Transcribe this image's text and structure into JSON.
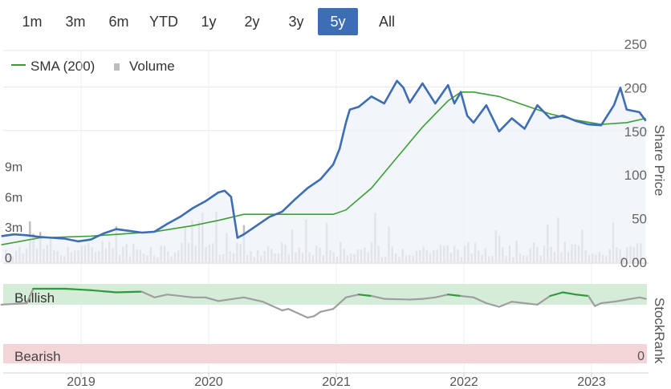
{
  "range_selector": {
    "options": [
      "1m",
      "3m",
      "6m",
      "YTD",
      "1y",
      "2y",
      "3y",
      "5y",
      "All"
    ],
    "selected": "5y"
  },
  "legend": {
    "sma_label": "SMA (200)",
    "volume_label": "Volume"
  },
  "colors": {
    "price_line": "#3d6db5",
    "price_fill": "#eef1f8",
    "sma_line": "#3aa035",
    "volume_bar": "#bdbdbd",
    "bullish_band": "#d5ecd8",
    "bearish_band": "#f4d5d7",
    "stockrank_bull": "#2e9a3a",
    "stockrank_neutral": "#9e9e9e",
    "active_button": "#3d6db5"
  },
  "chart_data": [
    {
      "type": "line",
      "ylabel": "Share Price",
      "ylim": [
        0,
        250
      ],
      "y_ticks": [
        "0.00",
        "50",
        "100",
        "150",
        "200",
        "250"
      ],
      "volume_ticks": [
        "0",
        "3m",
        "6m",
        "9m"
      ],
      "volume_ylim": [
        0,
        12
      ],
      "x_ticks": [
        "2019",
        "2020",
        "2021",
        "2022",
        "2023"
      ],
      "series": [
        {
          "name": "Share Price",
          "x": [
            2018.3,
            2018.4,
            2018.5,
            2018.6,
            2018.7,
            2018.8,
            2018.9,
            2019.0,
            2019.1,
            2019.2,
            2019.3,
            2019.4,
            2019.5,
            2019.6,
            2019.7,
            2019.8,
            2019.9,
            2020.0,
            2020.05,
            2020.1,
            2020.15,
            2020.2,
            2020.3,
            2020.4,
            2020.5,
            2020.6,
            2020.7,
            2020.8,
            2020.9,
            2020.95,
            2021.0,
            2021.03,
            2021.1,
            2021.2,
            2021.3,
            2021.4,
            2021.45,
            2021.5,
            2021.6,
            2021.7,
            2021.8,
            2021.85,
            2021.9,
            2021.95,
            2022.0,
            2022.1,
            2022.2,
            2022.3,
            2022.4,
            2022.5,
            2022.6,
            2022.7,
            2022.8,
            2022.9,
            2023.0,
            2023.1,
            2023.15,
            2023.2,
            2023.3,
            2023.35
          ],
          "values": [
            30,
            32,
            31,
            29,
            28,
            27,
            24,
            26,
            33,
            38,
            36,
            34,
            35,
            44,
            52,
            62,
            70,
            80,
            82,
            75,
            28,
            32,
            42,
            52,
            58,
            72,
            85,
            95,
            112,
            130,
            160,
            175,
            178,
            190,
            182,
            208,
            200,
            183,
            205,
            182,
            203,
            182,
            195,
            168,
            160,
            180,
            150,
            165,
            153,
            180,
            165,
            168,
            162,
            158,
            157,
            180,
            200,
            175,
            172,
            162
          ]
        },
        {
          "name": "SMA (200)",
          "x": [
            2018.3,
            2018.6,
            2019.0,
            2019.5,
            2019.8,
            2020.0,
            2020.2,
            2020.5,
            2020.7,
            2020.9,
            2021.0,
            2021.2,
            2021.4,
            2021.6,
            2021.8,
            2021.9,
            2022.0,
            2022.2,
            2022.4,
            2022.6,
            2022.8,
            2023.0,
            2023.2,
            2023.35
          ],
          "values": [
            20,
            28,
            30,
            35,
            42,
            48,
            55,
            55,
            55,
            55,
            60,
            85,
            120,
            155,
            185,
            195,
            195,
            190,
            180,
            170,
            163,
            158,
            160,
            165
          ]
        }
      ]
    },
    {
      "type": "line",
      "ylabel": "StockRank",
      "bands": [
        "Bullish",
        "Bearish"
      ],
      "y_ticks": [
        "0"
      ],
      "ylim": [
        0,
        100
      ],
      "x": [
        2018.3,
        2018.5,
        2018.55,
        2018.8,
        2019.0,
        2019.2,
        2019.4,
        2019.5,
        2019.6,
        2019.8,
        2019.9,
        2020.0,
        2020.2,
        2020.35,
        2020.5,
        2020.55,
        2020.7,
        2020.75,
        2020.8,
        2020.9,
        2021.0,
        2021.1,
        2021.2,
        2021.3,
        2021.5,
        2021.6,
        2021.7,
        2021.8,
        2021.9,
        2022.0,
        2022.1,
        2022.2,
        2022.3,
        2022.4,
        2022.5,
        2022.6,
        2022.7,
        2022.8,
        2022.9,
        2022.95,
        2023.0,
        2023.1,
        2023.2,
        2023.3,
        2023.35
      ],
      "values": [
        78,
        80,
        100,
        100,
        98,
        95,
        96,
        88,
        92,
        88,
        88,
        83,
        88,
        82,
        70,
        72,
        60,
        62,
        68,
        72,
        88,
        92,
        90,
        86,
        85,
        86,
        88,
        92,
        90,
        88,
        80,
        75,
        82,
        80,
        78,
        90,
        95,
        92,
        90,
        76,
        80,
        82,
        85,
        88,
        86
      ]
    }
  ]
}
